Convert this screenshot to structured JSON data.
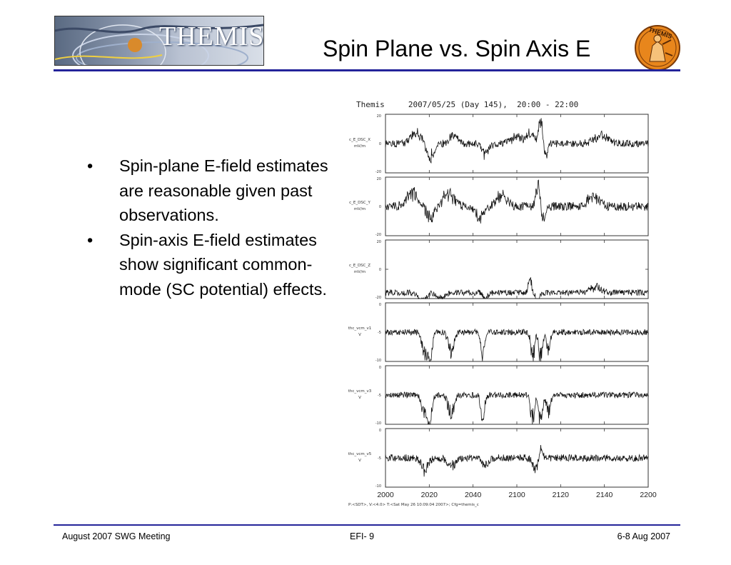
{
  "slide": {
    "title": "Spin Plane vs. Spin Axis E",
    "logo_text": "THEMIS",
    "badge_text": "THEMIS",
    "bullets": [
      "Spin-plane E-field estimates are reasonable given past observations.",
      "Spin-axis E-field estimates show significant common-mode (SC potential) effects."
    ],
    "footer": {
      "left": "August 2007 SWG Meeting",
      "center": "EFI- 9",
      "right": "6-8 Aug 2007"
    },
    "colors": {
      "rule": "#24249a",
      "badge": "#e8861c",
      "logo_bg": "#5a6a82"
    }
  },
  "chart_data": {
    "type": "line",
    "title": "Themis     2007/05/25 (Day 145),  20:00 - 22:00",
    "x_ticks": [
      "2000",
      "2020",
      "2040",
      "2100",
      "2120",
      "2140",
      "2200"
    ],
    "footnote": "P:<SDT>, V:<4.0> T:<Sat May 26 10:09:04 2007>;  Cfg=themis_c",
    "panels": [
      {
        "label": "c_E_DSC_X",
        "unit": "mV/m",
        "ylim": [
          -20,
          20
        ],
        "y_ticks": [
          "20",
          "0",
          "-20"
        ],
        "baseline": 0,
        "noise": 2.5,
        "events": [
          {
            "t": 0.12,
            "amp": 7,
            "w": 0.03
          },
          {
            "t": 0.17,
            "amp": -10,
            "w": 0.02
          },
          {
            "t": 0.26,
            "amp": 6,
            "w": 0.02
          },
          {
            "t": 0.38,
            "amp": -7,
            "w": 0.02
          },
          {
            "t": 0.5,
            "amp": 5,
            "w": 0.03
          },
          {
            "t": 0.55,
            "amp": 6,
            "w": 0.02
          },
          {
            "t": 0.59,
            "amp": 16,
            "w": 0.01
          },
          {
            "t": 0.61,
            "amp": -9,
            "w": 0.01
          },
          {
            "t": 0.82,
            "amp": 5,
            "w": 0.04
          }
        ]
      },
      {
        "label": "c_E_DSC_Y",
        "unit": "mV/m",
        "ylim": [
          -20,
          20
        ],
        "y_ticks": [
          "20",
          "0",
          "-20"
        ],
        "baseline": 0,
        "noise": 3,
        "events": [
          {
            "t": 0.1,
            "amp": 9,
            "w": 0.03
          },
          {
            "t": 0.17,
            "amp": -9,
            "w": 0.02
          },
          {
            "t": 0.24,
            "amp": 8,
            "w": 0.03
          },
          {
            "t": 0.36,
            "amp": -8,
            "w": 0.02
          },
          {
            "t": 0.44,
            "amp": 7,
            "w": 0.03
          },
          {
            "t": 0.58,
            "amp": 15,
            "w": 0.01
          },
          {
            "t": 0.6,
            "amp": -10,
            "w": 0.01
          },
          {
            "t": 0.79,
            "amp": 7,
            "w": 0.03
          }
        ]
      },
      {
        "label": "c_E_DSC_Z",
        "unit": "mV/m",
        "ylim": [
          -20,
          20
        ],
        "y_ticks": [
          "20",
          "0",
          "-20"
        ],
        "baseline": -16,
        "noise": 2,
        "events": [
          {
            "t": 0.14,
            "amp": -6,
            "w": 0.02
          },
          {
            "t": 0.21,
            "amp": -4,
            "w": 0.02
          },
          {
            "t": 0.38,
            "amp": -6,
            "w": 0.01
          },
          {
            "t": 0.55,
            "amp": 8,
            "w": 0.01
          },
          {
            "t": 0.58,
            "amp": -8,
            "w": 0.01
          },
          {
            "t": 0.8,
            "amp": 4,
            "w": 0.03
          }
        ]
      },
      {
        "label": "thc_vcm_v1",
        "unit": "V",
        "ylim": [
          -10,
          0
        ],
        "y_ticks": [
          "0",
          "-5",
          "-10"
        ],
        "baseline": -5,
        "noise": 0.5,
        "events": [
          {
            "t": 0.15,
            "amp": -3.5,
            "w": 0.015
          },
          {
            "t": 0.17,
            "amp": -4.5,
            "w": 0.01
          },
          {
            "t": 0.25,
            "amp": -3.5,
            "w": 0.015
          },
          {
            "t": 0.37,
            "amp": -4,
            "w": 0.01
          },
          {
            "t": 0.56,
            "amp": -4.5,
            "w": 0.01
          },
          {
            "t": 0.59,
            "amp": -4.5,
            "w": 0.01
          },
          {
            "t": 0.62,
            "amp": -3,
            "w": 0.01
          }
        ]
      },
      {
        "label": "thc_vcm_v3",
        "unit": "V",
        "ylim": [
          -10,
          0
        ],
        "y_ticks": [
          "0",
          "-5",
          "-10"
        ],
        "baseline": -5,
        "noise": 0.5,
        "events": [
          {
            "t": 0.15,
            "amp": -3.5,
            "w": 0.015
          },
          {
            "t": 0.17,
            "amp": -4.5,
            "w": 0.01
          },
          {
            "t": 0.25,
            "amp": -3.5,
            "w": 0.015
          },
          {
            "t": 0.37,
            "amp": -4,
            "w": 0.01
          },
          {
            "t": 0.56,
            "amp": -4.5,
            "w": 0.01
          },
          {
            "t": 0.59,
            "amp": -4.5,
            "w": 0.01
          },
          {
            "t": 0.62,
            "amp": -3,
            "w": 0.01
          }
        ]
      },
      {
        "label": "thc_vcm_v5",
        "unit": "V",
        "ylim": [
          -10,
          0
        ],
        "y_ticks": [
          "0",
          "-5",
          "-10"
        ],
        "baseline": -5,
        "noise": 0.6,
        "events": [
          {
            "t": 0.15,
            "amp": -2,
            "w": 0.02
          },
          {
            "t": 0.25,
            "amp": -1.5,
            "w": 0.02
          },
          {
            "t": 0.38,
            "amp": -1.5,
            "w": 0.015
          },
          {
            "t": 0.57,
            "amp": -2,
            "w": 0.015
          },
          {
            "t": 0.59,
            "amp": 1.5,
            "w": 0.01
          }
        ]
      }
    ]
  }
}
